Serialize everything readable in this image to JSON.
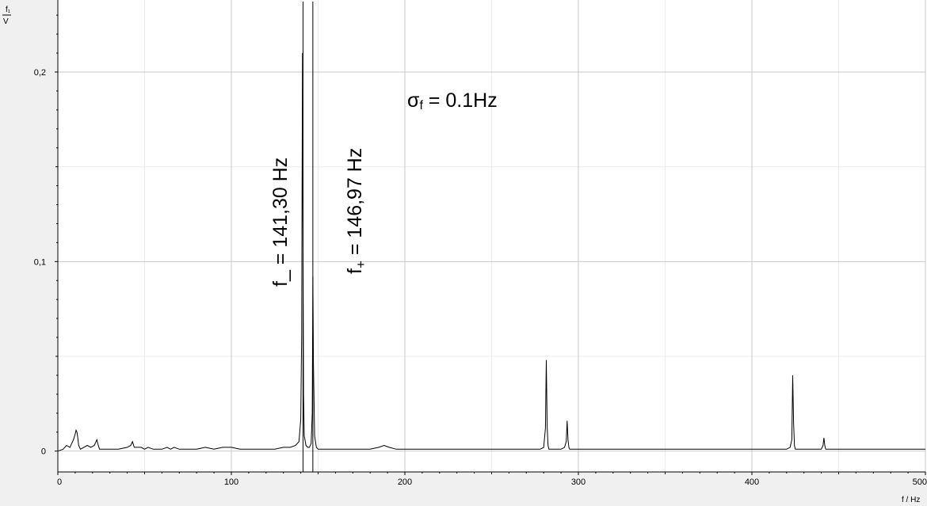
{
  "chart_data": {
    "type": "line",
    "ylabel_top": "f₁",
    "ylabel_bottom": "V",
    "xlabel": "f / Hz",
    "xlim": [
      0,
      500
    ],
    "ylim": [
      -0.011,
      0.238
    ],
    "xticks": [
      0,
      100,
      200,
      300,
      400,
      500
    ],
    "yticks": [
      0,
      0.1,
      0.2
    ],
    "ytick_labels": [
      "0",
      "0,1",
      "0,2"
    ],
    "grid": true,
    "series": [
      {
        "x": [
          0,
          3,
          5,
          7,
          8,
          9,
          10,
          10.5,
          11,
          11.5,
          12,
          13,
          15,
          17,
          19,
          21,
          22,
          22.5,
          23,
          24,
          26,
          30,
          35,
          40,
          42,
          43,
          44,
          46,
          48,
          50,
          52,
          55,
          60,
          63,
          65,
          67,
          70,
          75,
          80,
          85,
          90,
          95,
          100,
          105,
          110,
          115,
          120,
          125,
          130,
          134,
          137,
          139,
          140,
          140.5,
          141,
          141.3,
          141.6,
          142,
          143,
          144,
          145,
          146,
          146.6,
          146.97,
          147.3,
          148,
          149,
          150,
          155,
          160,
          170,
          180,
          185,
          188,
          191,
          195,
          200,
          210,
          220,
          240,
          260,
          278,
          280,
          281,
          281.5,
          282,
          282.5,
          283,
          284,
          286,
          290,
          292,
          293,
          293.5,
          294,
          294.5,
          295,
          296,
          300,
          320,
          350,
          380,
          410,
          420,
          422,
          423,
          423.5,
          424,
          424.5,
          425,
          426,
          430,
          438,
          440,
          441,
          441.5,
          442,
          442.5,
          443,
          445,
          460,
          480,
          500
        ],
        "y": [
          0,
          0.001,
          0.003,
          0.002,
          0.004,
          0.006,
          0.009,
          0.011,
          0.01,
          0.007,
          0.003,
          0.001,
          0.002,
          0.003,
          0.002,
          0.003,
          0.005,
          0.006,
          0.004,
          0.001,
          0.001,
          0.001,
          0.001,
          0.002,
          0.003,
          0.005,
          0.002,
          0.002,
          0.002,
          0.001,
          0.002,
          0.001,
          0.001,
          0.002,
          0.001,
          0.002,
          0.001,
          0.001,
          0.001,
          0.002,
          0.001,
          0.002,
          0.002,
          0.001,
          0.001,
          0.001,
          0.001,
          0.001,
          0.002,
          0.002,
          0.003,
          0.005,
          0.017,
          0.06,
          0.21,
          0.12,
          0.03,
          0.008,
          0.003,
          0.002,
          0.002,
          0.004,
          0.02,
          0.092,
          0.046,
          0.008,
          0.002,
          0.001,
          0.001,
          0.001,
          0.001,
          0.001,
          0.002,
          0.003,
          0.002,
          0.001,
          0.001,
          0.001,
          0.001,
          0.001,
          0.001,
          0.001,
          0.002,
          0.012,
          0.048,
          0.013,
          0.003,
          0.001,
          0.001,
          0.001,
          0.001,
          0.002,
          0.005,
          0.016,
          0.006,
          0.002,
          0.001,
          0.001,
          0.001,
          0.001,
          0.001,
          0.001,
          0.001,
          0.001,
          0.002,
          0.006,
          0.04,
          0.015,
          0.003,
          0.001,
          0.001,
          0.001,
          0.001,
          0.001,
          0.003,
          0.007,
          0.003,
          0.001,
          0.001,
          0.001,
          0.001,
          0.001,
          0.001
        ]
      }
    ],
    "markers": [
      {
        "x": 141.3,
        "label": "f_ =  141,30 Hz"
      },
      {
        "x": 146.97,
        "label_main": "f",
        "label_sub": "+",
        "label_rest": " =  146,97 Hz"
      }
    ],
    "annotation": {
      "sigma": "σ",
      "sub": "f",
      "rest": " = 0.1Hz"
    }
  }
}
